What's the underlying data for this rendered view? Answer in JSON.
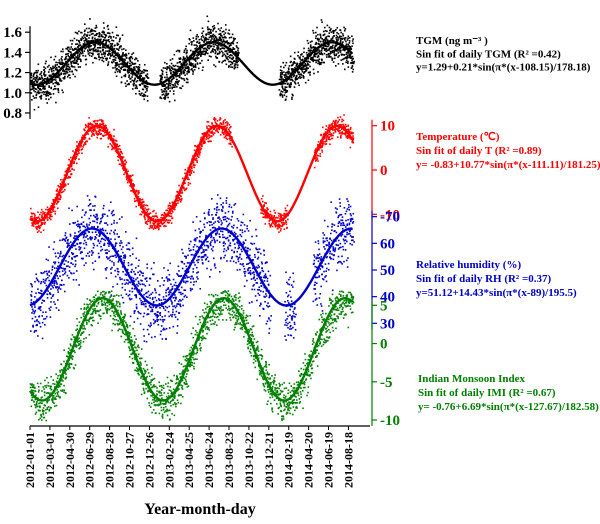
{
  "chart_data": {
    "type": "scatter",
    "title": "",
    "xlabel": "Year-month-day",
    "x_ticks": [
      "2012-01-01",
      "2012-03-01",
      "2012-04-30",
      "2012-06-29",
      "2012-08-28",
      "2012-10-27",
      "2012-12-26",
      "2013-02-24",
      "2013-04-25",
      "2013-06-24",
      "2013-08-23",
      "2013-10-22",
      "2013-12-21",
      "2014-02-19",
      "2014-04-20",
      "2014-06-19",
      "2014-08-18"
    ],
    "x_range": [
      "2012-01-01",
      "2014-10-10"
    ],
    "grid": false,
    "panels": [
      {
        "key": "tgm",
        "color": "#000000",
        "axis_side": "left",
        "ylim": [
          0.75,
          1.8
        ],
        "yticks": [
          1.6,
          1.4,
          1.2,
          1.0,
          0.8
        ],
        "ytick_labels": [
          "1.6",
          "1.4",
          "1.2",
          "1.0",
          "0.8"
        ],
        "fit": {
          "a": 1.29,
          "b": 0.21,
          "c": 108.15,
          "d": 178.18
        },
        "noise": 0.13,
        "gaps": [
          [
            "2012-12-20",
            "2013-01-25"
          ],
          [
            "2013-09-20",
            "2014-01-20"
          ]
        ],
        "legend_title": "TGM (ng m⁻³ )",
        "fit_label": "Sin fit of daily TGM (R² =0.42)",
        "equation": "y=1.29+0.21*sin(π*(x-108.15)/178.18)"
      },
      {
        "key": "temperature",
        "color": "#ff0000",
        "axis_side": "right",
        "ylim": [
          -14,
          14
        ],
        "yticks": [
          10,
          0,
          -10
        ],
        "ytick_labels": [
          "10",
          "0",
          "-10"
        ],
        "fit": {
          "a": -0.83,
          "b": 10.77,
          "c": 111.11,
          "d": 181.25
        },
        "noise": 1.6,
        "gaps": [
          [
            "2013-09-01",
            "2013-11-25"
          ],
          [
            "2014-02-15",
            "2014-05-05"
          ]
        ],
        "legend_title": "Temperature (℃)",
        "fit_label": "Sin fit of daily T (R² =0.89)",
        "equation": "y= -0.83+10.77*sin(π*(x-111.11)/181.25)"
      },
      {
        "key": "rh",
        "color": "#0000cc",
        "axis_side": "right",
        "ylim": [
          23,
          80
        ],
        "yticks": [
          60,
          50,
          40,
          30
        ],
        "ytick_labels": [
          "60",
          "50",
          "40",
          "30"
        ],
        "extra_ticks": [
          {
            "value": 70,
            "label": "-70"
          }
        ],
        "fit": {
          "a": 51.12,
          "b": 14.43,
          "c": 89,
          "d": 195.5
        },
        "noise": 9,
        "gaps": [
          [
            "2013-12-25",
            "2014-02-05"
          ],
          [
            "2014-03-10",
            "2014-05-01"
          ]
        ],
        "legend_title": "Relative  humidity (%)",
        "fit_label": "Sin fit of daily RH (R² =0.37)",
        "equation": "y=51.12+14.43*sin(π*(x-89)/195.5)"
      },
      {
        "key": "imi",
        "color": "#008000",
        "axis_side": "right",
        "ylim": [
          -10,
          7
        ],
        "yticks": [
          0,
          -5,
          -10
        ],
        "ytick_labels": [
          "0",
          "-5",
          "-10"
        ],
        "extra_ticks": [
          {
            "value": 5,
            "label": "5"
          }
        ],
        "fit": {
          "a": -0.76,
          "b": 6.69,
          "c": 127.67,
          "d": 182.58
        },
        "noise": 1.8,
        "gaps": [],
        "legend_title": "Indian Monsoon Index",
        "fit_label": "Sin fit of daily IMI (R² =0.67)",
        "equation": "y= -0.76+6.69*sin(π*(x-127.67)/182.58)"
      }
    ]
  }
}
